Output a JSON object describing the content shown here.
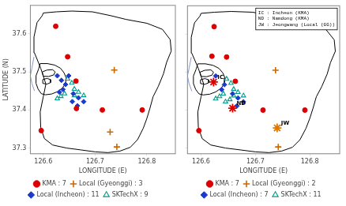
{
  "chart_data": [
    {
      "type": "scatter",
      "xlabel": "LONGITUDE (E)",
      "ylabel": "LATITUDE (N)",
      "xlim": [
        126.575,
        126.855
      ],
      "ylim": [
        37.285,
        37.675
      ],
      "xticks": [
        126.6,
        126.7,
        126.8
      ],
      "yticks": [
        37.3,
        37.4,
        37.5,
        37.6
      ],
      "grid": false,
      "legend": "bottom",
      "series": [
        {
          "name": "KMA : 7",
          "color": "#dd0000",
          "marker": "circle",
          "values": [
            [
              126.624,
              37.62
            ],
            [
              126.647,
              37.54
            ],
            [
              126.663,
              37.476
            ],
            [
              126.664,
              37.404
            ],
            [
              126.596,
              37.346
            ],
            [
              126.714,
              37.4
            ],
            [
              126.791,
              37.4
            ]
          ]
        },
        {
          "name": "Local (Gyeonggi) : 3",
          "color": "#cc6600",
          "marker": "plus",
          "values": [
            [
              126.737,
              37.505
            ],
            [
              126.729,
              37.342
            ],
            [
              126.742,
              37.303
            ]
          ]
        },
        {
          "name": "Local (Incheon) : 11",
          "color": "#1a3acc",
          "marker": "diamond",
          "values": [
            [
              126.627,
              37.49
            ],
            [
              126.635,
              37.478
            ],
            [
              126.643,
              37.467
            ],
            [
              126.638,
              37.454
            ],
            [
              126.631,
              37.447
            ],
            [
              126.649,
              37.49
            ],
            [
              126.658,
              37.443
            ],
            [
              126.668,
              37.432
            ],
            [
              126.678,
              37.422
            ],
            [
              126.666,
              37.411
            ],
            [
              126.656,
              37.422
            ]
          ]
        },
        {
          "name": "SKTechX : 9",
          "color": "#009988",
          "marker": "open_triangle",
          "values": [
            [
              126.647,
              37.482
            ],
            [
              126.655,
              37.471
            ],
            [
              126.66,
              37.455
            ],
            [
              126.668,
              37.447
            ],
            [
              126.678,
              37.438
            ],
            [
              126.66,
              37.438
            ],
            [
              126.641,
              37.443
            ],
            [
              126.634,
              37.436
            ],
            [
              126.627,
              37.43
            ]
          ]
        },
        {
          "type": "line",
          "color": "#000000",
          "values": [
            [
              126.6,
              37.655
            ],
            [
              126.625,
              37.658
            ],
            [
              126.655,
              37.66
            ],
            [
              126.695,
              37.658
            ],
            [
              126.73,
              37.648
            ],
            [
              126.76,
              37.638
            ],
            [
              126.8,
              37.628
            ],
            [
              126.83,
              37.612
            ],
            [
              126.845,
              37.585
            ],
            [
              126.847,
              37.555
            ],
            [
              126.838,
              37.525
            ],
            [
              126.832,
              37.495
            ],
            [
              126.822,
              37.462
            ],
            [
              126.812,
              37.435
            ],
            [
              126.806,
              37.405
            ],
            [
              126.8,
              37.378
            ],
            [
              126.793,
              37.352
            ],
            [
              126.782,
              37.322
            ],
            [
              126.768,
              37.302
            ],
            [
              126.748,
              37.292
            ],
            [
              126.725,
              37.288
            ],
            [
              126.7,
              37.29
            ],
            [
              126.673,
              37.295
            ],
            [
              126.645,
              37.3
            ],
            [
              126.618,
              37.308
            ],
            [
              126.602,
              37.325
            ],
            [
              126.595,
              37.355
            ],
            [
              126.594,
              37.395
            ],
            [
              126.6,
              37.435
            ],
            [
              126.605,
              37.468
            ],
            [
              126.595,
              37.51
            ],
            [
              126.583,
              37.55
            ],
            [
              126.582,
              37.592
            ],
            [
              126.588,
              37.63
            ],
            [
              126.598,
              37.648
            ],
            [
              126.6,
              37.655
            ]
          ]
        },
        {
          "type": "line",
          "color": "#000000",
          "values": [
            [
              126.594,
              37.522
            ],
            [
              126.608,
              37.522
            ],
            [
              126.622,
              37.518
            ],
            [
              126.633,
              37.51
            ],
            [
              126.64,
              37.498
            ],
            [
              126.644,
              37.485
            ],
            [
              126.643,
              37.47
            ],
            [
              126.637,
              37.458
            ],
            [
              126.627,
              37.448
            ],
            [
              126.616,
              37.442
            ],
            [
              126.604,
              37.44
            ],
            [
              126.596,
              37.443
            ],
            [
              126.59,
              37.455
            ],
            [
              126.586,
              37.47
            ],
            [
              126.586,
              37.49
            ],
            [
              126.591,
              37.508
            ],
            [
              126.594,
              37.522
            ]
          ]
        },
        {
          "type": "line",
          "color": "#000000",
          "values": [
            [
              126.598,
              37.5
            ],
            [
              126.607,
              37.505
            ],
            [
              126.618,
              37.506
            ],
            [
              126.623,
              37.5
            ],
            [
              126.62,
              37.492
            ],
            [
              126.61,
              37.488
            ],
            [
              126.6,
              37.489
            ],
            [
              126.598,
              37.5
            ]
          ]
        },
        {
          "type": "line",
          "color": "#000000",
          "values": [
            [
              126.599,
              37.48
            ],
            [
              126.607,
              37.483
            ],
            [
              126.614,
              37.48
            ],
            [
              126.614,
              37.472
            ],
            [
              126.607,
              37.468
            ],
            [
              126.599,
              37.47
            ],
            [
              126.599,
              37.48
            ]
          ]
        },
        {
          "type": "line",
          "color": "#8899cc",
          "values": [
            [
              126.582,
              37.54
            ],
            [
              126.578,
              37.51
            ],
            [
              126.575,
              37.49
            ],
            [
              126.578,
              37.47
            ],
            [
              126.583,
              37.45
            ]
          ]
        }
      ]
    },
    {
      "type": "scatter",
      "xlabel": "LONGITUDE (E)",
      "xlim": [
        126.575,
        126.855
      ],
      "ylim": [
        37.285,
        37.675
      ],
      "xticks": [
        126.6,
        126.7,
        126.8
      ],
      "yticks": [
        37.3,
        37.4,
        37.5,
        37.6
      ],
      "grid": false,
      "legend": "bottom",
      "tick_labels": "x",
      "series": [
        {
          "name": "KMA : 7",
          "color": "#dd0000",
          "marker": "circle",
          "values": [
            [
              126.624,
              37.62
            ],
            [
              126.62,
              37.542
            ],
            [
              126.791,
              37.4
            ],
            [
              126.714,
              37.4
            ],
            [
              126.596,
              37.346
            ],
            [
              126.663,
              37.476
            ],
            [
              126.647,
              37.54
            ]
          ]
        },
        {
          "name": "Local (Gyeonggi) : 2",
          "color": "#cc6600",
          "marker": "plus",
          "values": [
            [
              126.737,
              37.505
            ],
            [
              126.742,
              37.303
            ]
          ]
        },
        {
          "name": "Local (Incheon) : 7",
          "color": "#1a3acc",
          "marker": "diamond",
          "values": [
            [
              126.627,
              37.49
            ],
            [
              126.643,
              37.467
            ],
            [
              126.638,
              37.454
            ],
            [
              126.678,
              37.422
            ],
            [
              126.668,
              37.432
            ],
            [
              126.666,
              37.411
            ],
            [
              126.658,
              37.443
            ]
          ]
        },
        {
          "name": "SKTechX : 11",
          "color": "#009988",
          "marker": "open_triangle",
          "values": [
            [
              126.647,
              37.482
            ],
            [
              126.655,
              37.471
            ],
            [
              126.66,
              37.455
            ],
            [
              126.668,
              37.447
            ],
            [
              126.678,
              37.438
            ],
            [
              126.66,
              37.438
            ],
            [
              126.641,
              37.443
            ],
            [
              126.634,
              37.436
            ],
            [
              126.627,
              37.43
            ],
            [
              126.645,
              37.422
            ],
            [
              126.653,
              37.428
            ]
          ]
        },
        {
          "type": "line",
          "color": "#000000",
          "values": [
            [
              126.6,
              37.655
            ],
            [
              126.625,
              37.658
            ],
            [
              126.655,
              37.66
            ],
            [
              126.695,
              37.658
            ],
            [
              126.73,
              37.648
            ],
            [
              126.76,
              37.638
            ],
            [
              126.8,
              37.628
            ],
            [
              126.83,
              37.612
            ],
            [
              126.845,
              37.585
            ],
            [
              126.847,
              37.555
            ],
            [
              126.838,
              37.525
            ],
            [
              126.832,
              37.495
            ],
            [
              126.822,
              37.462
            ],
            [
              126.812,
              37.435
            ],
            [
              126.806,
              37.405
            ],
            [
              126.8,
              37.378
            ],
            [
              126.793,
              37.352
            ],
            [
              126.782,
              37.322
            ],
            [
              126.768,
              37.302
            ],
            [
              126.748,
              37.292
            ],
            [
              126.725,
              37.288
            ],
            [
              126.7,
              37.29
            ],
            [
              126.673,
              37.295
            ],
            [
              126.645,
              37.3
            ],
            [
              126.618,
              37.308
            ],
            [
              126.602,
              37.325
            ],
            [
              126.595,
              37.355
            ],
            [
              126.594,
              37.395
            ],
            [
              126.6,
              37.435
            ],
            [
              126.605,
              37.468
            ],
            [
              126.595,
              37.51
            ],
            [
              126.583,
              37.55
            ],
            [
              126.582,
              37.592
            ],
            [
              126.588,
              37.63
            ],
            [
              126.598,
              37.648
            ],
            [
              126.6,
              37.655
            ]
          ]
        },
        {
          "type": "line",
          "color": "#000000",
          "values": [
            [
              126.594,
              37.522
            ],
            [
              126.608,
              37.522
            ],
            [
              126.622,
              37.518
            ],
            [
              126.633,
              37.51
            ],
            [
              126.64,
              37.498
            ],
            [
              126.644,
              37.485
            ],
            [
              126.643,
              37.47
            ],
            [
              126.637,
              37.458
            ],
            [
              126.627,
              37.448
            ],
            [
              126.616,
              37.442
            ],
            [
              126.604,
              37.44
            ],
            [
              126.596,
              37.443
            ],
            [
              126.59,
              37.455
            ],
            [
              126.586,
              37.47
            ],
            [
              126.586,
              37.49
            ],
            [
              126.591,
              37.508
            ],
            [
              126.594,
              37.522
            ]
          ]
        },
        {
          "type": "line",
          "color": "#000000",
          "values": [
            [
              126.598,
              37.5
            ],
            [
              126.607,
              37.505
            ],
            [
              126.618,
              37.506
            ],
            [
              126.623,
              37.5
            ],
            [
              126.62,
              37.492
            ],
            [
              126.61,
              37.488
            ],
            [
              126.6,
              37.489
            ],
            [
              126.598,
              37.5
            ]
          ]
        },
        {
          "type": "line",
          "color": "#000000",
          "values": [
            [
              126.599,
              37.48
            ],
            [
              126.607,
              37.483
            ],
            [
              126.614,
              37.48
            ],
            [
              126.614,
              37.472
            ],
            [
              126.607,
              37.468
            ],
            [
              126.599,
              37.47
            ],
            [
              126.599,
              37.48
            ]
          ]
        },
        {
          "type": "line",
          "color": "#8899cc",
          "values": [
            [
              126.582,
              37.54
            ],
            [
              126.578,
              37.51
            ],
            [
              126.575,
              37.49
            ],
            [
              126.578,
              37.47
            ],
            [
              126.583,
              37.45
            ]
          ]
        }
      ],
      "annotations": [
        {
          "text": "IC",
          "x": 126.623,
          "y": 37.474,
          "color": "#dd0000",
          "marker": "star"
        },
        {
          "text": "ND",
          "x": 126.658,
          "y": 37.405,
          "color": "#dd0000",
          "marker": "star"
        },
        {
          "text": "JW",
          "x": 126.74,
          "y": 37.353,
          "color": "#dd7700",
          "marker": "star"
        },
        {
          "text": [
            "IC : Incheon (KMA)",
            "ND : Namdong (KMA)",
            "JW : Jeongwang (Local (GG))"
          ]
        }
      ]
    }
  ]
}
